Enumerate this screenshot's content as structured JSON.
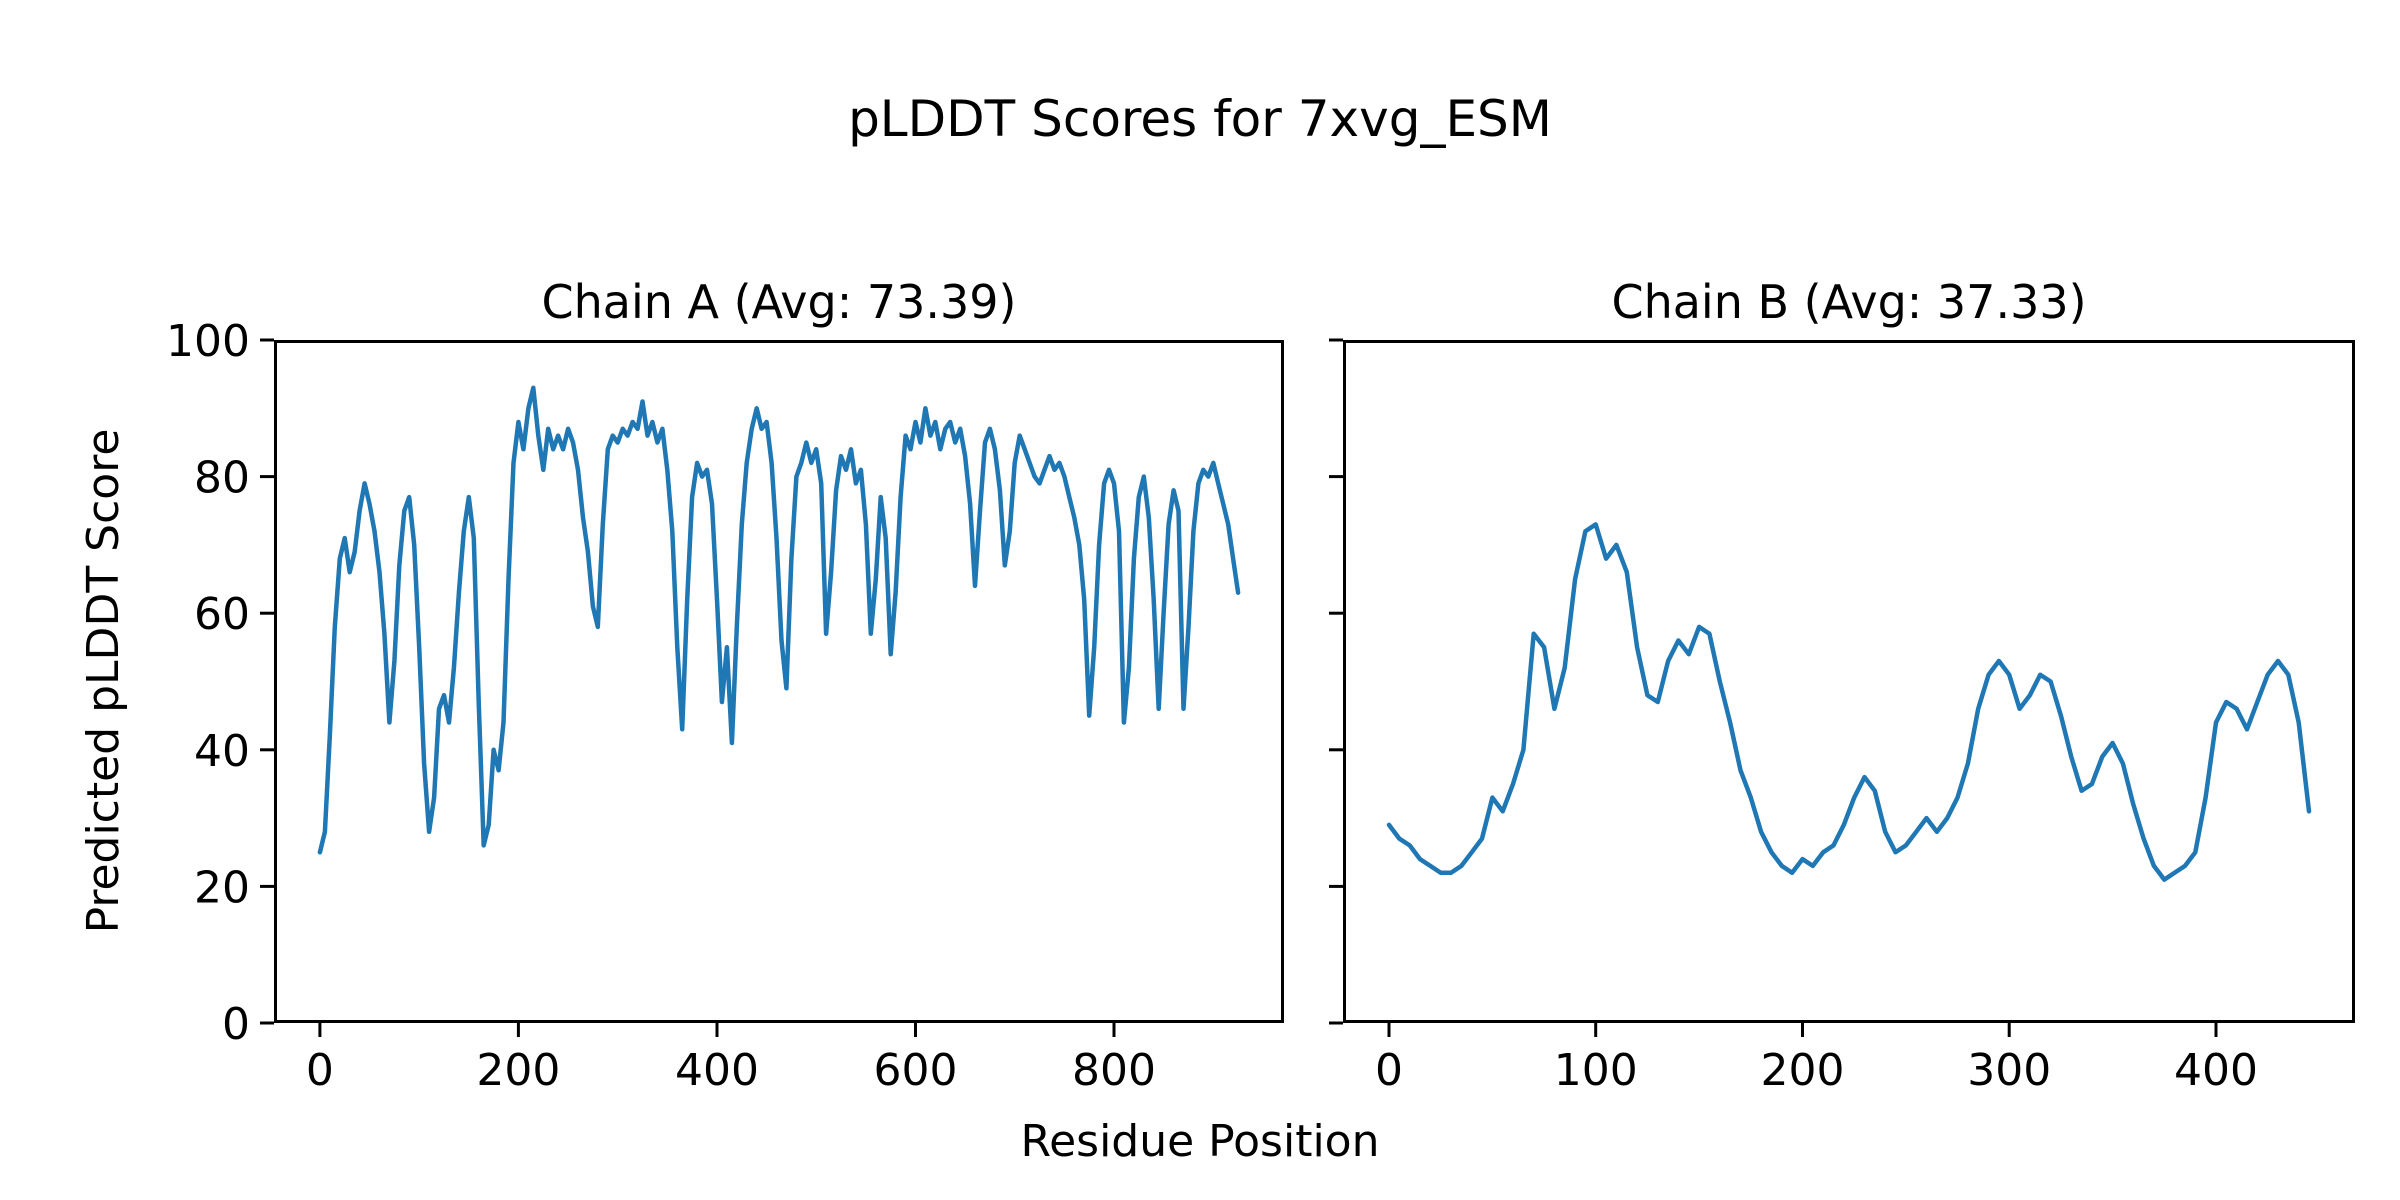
{
  "chart_data": {
    "type": "line",
    "suptitle": "pLDDT Scores for 7xvg_ESM",
    "xlabel": "Residue Position",
    "ylabel": "Predicted pLDDT Score",
    "line_color": "#1f77b4",
    "background": "#ffffff",
    "grid": false,
    "legend": "none",
    "subplots": [
      {
        "title": "Chain A (Avg: 73.39)",
        "average_plddt": 73.39,
        "ylim": [
          0,
          100
        ],
        "yticks": [
          0,
          20,
          40,
          60,
          80,
          100
        ],
        "xticks": [
          0,
          200,
          400,
          600,
          800
        ],
        "show_ytick_labels": true,
        "x_start": 0,
        "x_step": 5,
        "values": [
          25,
          28,
          42,
          58,
          68,
          71,
          66,
          69,
          75,
          79,
          76,
          72,
          66,
          57,
          44,
          53,
          67,
          75,
          77,
          70,
          55,
          38,
          28,
          33,
          46,
          48,
          44,
          52,
          63,
          72,
          77,
          71,
          47,
          26,
          29,
          40,
          37,
          44,
          65,
          82,
          88,
          84,
          90,
          93,
          86,
          81,
          87,
          84,
          86,
          84,
          87,
          85,
          81,
          74,
          69,
          61,
          58,
          73,
          84,
          86,
          85,
          87,
          86,
          88,
          87,
          91,
          86,
          88,
          85,
          87,
          81,
          72,
          55,
          43,
          62,
          77,
          82,
          80,
          81,
          76,
          62,
          47,
          55,
          41,
          58,
          73,
          82,
          87,
          90,
          87,
          88,
          82,
          71,
          56,
          49,
          68,
          80,
          82,
          85,
          82,
          84,
          79,
          57,
          66,
          78,
          83,
          81,
          84,
          79,
          81,
          73,
          57,
          65,
          77,
          71,
          54,
          63,
          77,
          86,
          84,
          88,
          85,
          90,
          86,
          88,
          84,
          87,
          88,
          85,
          87,
          83,
          76,
          64,
          75,
          85,
          87,
          84,
          78,
          67,
          72,
          82,
          86,
          84,
          82,
          80,
          79,
          81,
          83,
          81,
          82,
          80,
          77,
          74,
          70,
          62,
          45,
          55,
          70,
          79,
          81,
          79,
          72,
          44,
          52,
          68,
          77,
          80,
          74,
          62,
          46,
          60,
          73,
          78,
          75,
          46,
          58,
          72,
          79,
          81,
          80,
          82,
          79,
          76,
          73,
          68,
          63
        ]
      },
      {
        "title": "Chain B (Avg: 37.33)",
        "average_plddt": 37.33,
        "ylim": [
          0,
          100
        ],
        "yticks": [
          0,
          20,
          40,
          60,
          80,
          100
        ],
        "xticks": [
          0,
          100,
          200,
          300,
          400
        ],
        "show_ytick_labels": false,
        "x_start": 0,
        "x_step": 5,
        "values": [
          29,
          27,
          26,
          24,
          23,
          22,
          22,
          23,
          25,
          27,
          33,
          31,
          35,
          40,
          57,
          55,
          46,
          52,
          65,
          72,
          73,
          68,
          70,
          66,
          55,
          48,
          47,
          53,
          56,
          54,
          58,
          57,
          50,
          44,
          37,
          33,
          28,
          25,
          23,
          22,
          24,
          23,
          25,
          26,
          29,
          33,
          36,
          34,
          28,
          25,
          26,
          28,
          30,
          28,
          30,
          33,
          38,
          46,
          51,
          53,
          51,
          46,
          48,
          51,
          50,
          45,
          39,
          34,
          35,
          39,
          41,
          38,
          32,
          27,
          23,
          21,
          22,
          23,
          25,
          33,
          44,
          47,
          46,
          43,
          47,
          51,
          53,
          51,
          44,
          31
        ]
      }
    ]
  }
}
